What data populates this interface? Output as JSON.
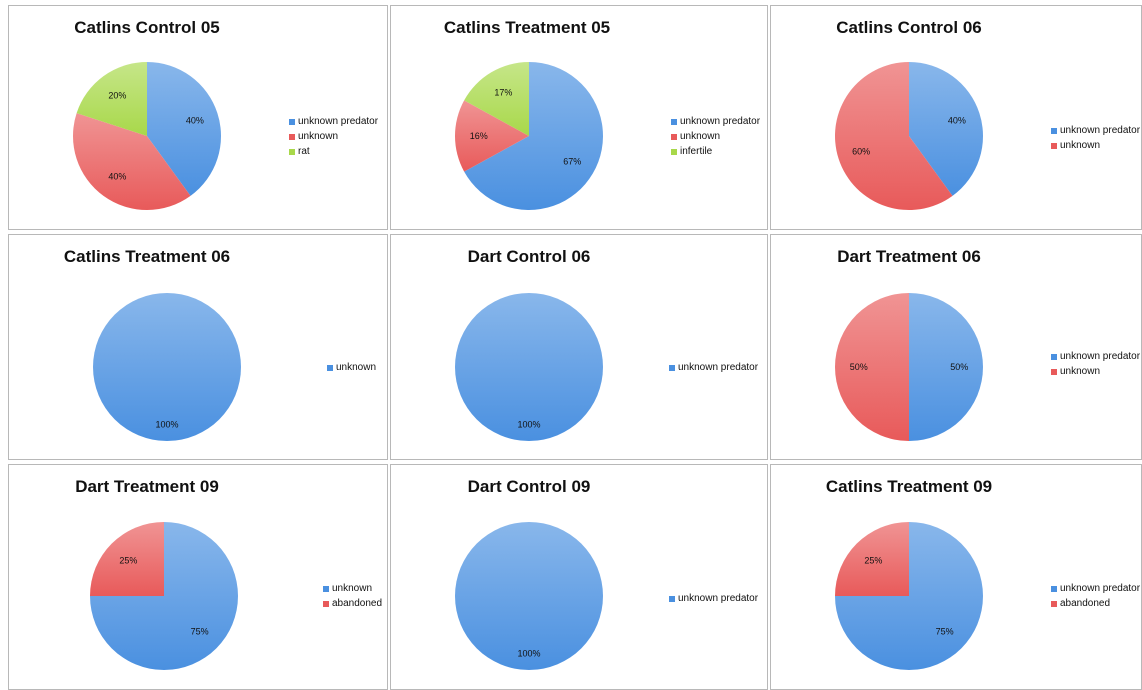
{
  "colors": {
    "unknown_predator": "#4a90e0",
    "unknown": "#e85a5a",
    "rat": "#a8d84a",
    "infertile": "#a8d84a",
    "abandoned": "#e85a5a"
  },
  "chart_data": [
    {
      "type": "pie",
      "title": "Catlins Control 05",
      "slices": [
        {
          "label": "unknown predator",
          "value": 40,
          "display": "40%",
          "color": "#4a90e0"
        },
        {
          "label": "unknown",
          "value": 40,
          "display": "40%",
          "color": "#e85a5a"
        },
        {
          "label": "rat",
          "value": 20,
          "display": "20%",
          "color": "#a8d84a"
        }
      ],
      "legend_position": "right"
    },
    {
      "type": "pie",
      "title": "Catlins Treatment 05",
      "slices": [
        {
          "label": "unknown predator",
          "value": 67,
          "display": "67%",
          "color": "#4a90e0"
        },
        {
          "label": "unknown",
          "value": 16,
          "display": "16%",
          "color": "#e85a5a"
        },
        {
          "label": "infertile",
          "value": 17,
          "display": "17%",
          "color": "#a8d84a"
        }
      ],
      "legend_position": "right"
    },
    {
      "type": "pie",
      "title": "Catlins Control 06",
      "slices": [
        {
          "label": "unknown predator",
          "value": 40,
          "display": "40%",
          "color": "#4a90e0"
        },
        {
          "label": "unknown",
          "value": 60,
          "display": "60%",
          "color": "#e85a5a"
        }
      ],
      "legend_position": "right"
    },
    {
      "type": "pie",
      "title": "Catlins Treatment 06",
      "slices": [
        {
          "label": "unknown",
          "value": 100,
          "display": "100%",
          "color": "#4a90e0"
        }
      ],
      "legend_position": "right"
    },
    {
      "type": "pie",
      "title": "Dart Control 06",
      "slices": [
        {
          "label": "unknown predator",
          "value": 100,
          "display": "100%",
          "color": "#4a90e0"
        }
      ],
      "legend_position": "right"
    },
    {
      "type": "pie",
      "title": "Dart Treatment 06",
      "slices": [
        {
          "label": "unknown predator",
          "value": 50,
          "display": "50%",
          "color": "#4a90e0"
        },
        {
          "label": "unknown",
          "value": 50,
          "display": "50%",
          "color": "#e85a5a"
        }
      ],
      "legend_position": "right"
    },
    {
      "type": "pie",
      "title": "Dart Treatment 09",
      "slices": [
        {
          "label": "unknown",
          "value": 75,
          "display": "75%",
          "color": "#4a90e0"
        },
        {
          "label": "abandoned",
          "value": 25,
          "display": "25%",
          "color": "#e85a5a"
        }
      ],
      "legend_position": "right"
    },
    {
      "type": "pie",
      "title": "Dart Control 09",
      "slices": [
        {
          "label": "unknown predator",
          "value": 100,
          "display": "100%",
          "color": "#4a90e0"
        }
      ],
      "legend_position": "right"
    },
    {
      "type": "pie",
      "title": "Catlins Treatment 09",
      "slices": [
        {
          "label": "unknown predator",
          "value": 75,
          "display": "75%",
          "color": "#4a90e0"
        },
        {
          "label": "abandoned",
          "value": 25,
          "display": "25%",
          "color": "#e85a5a"
        }
      ],
      "legend_position": "right"
    }
  ]
}
